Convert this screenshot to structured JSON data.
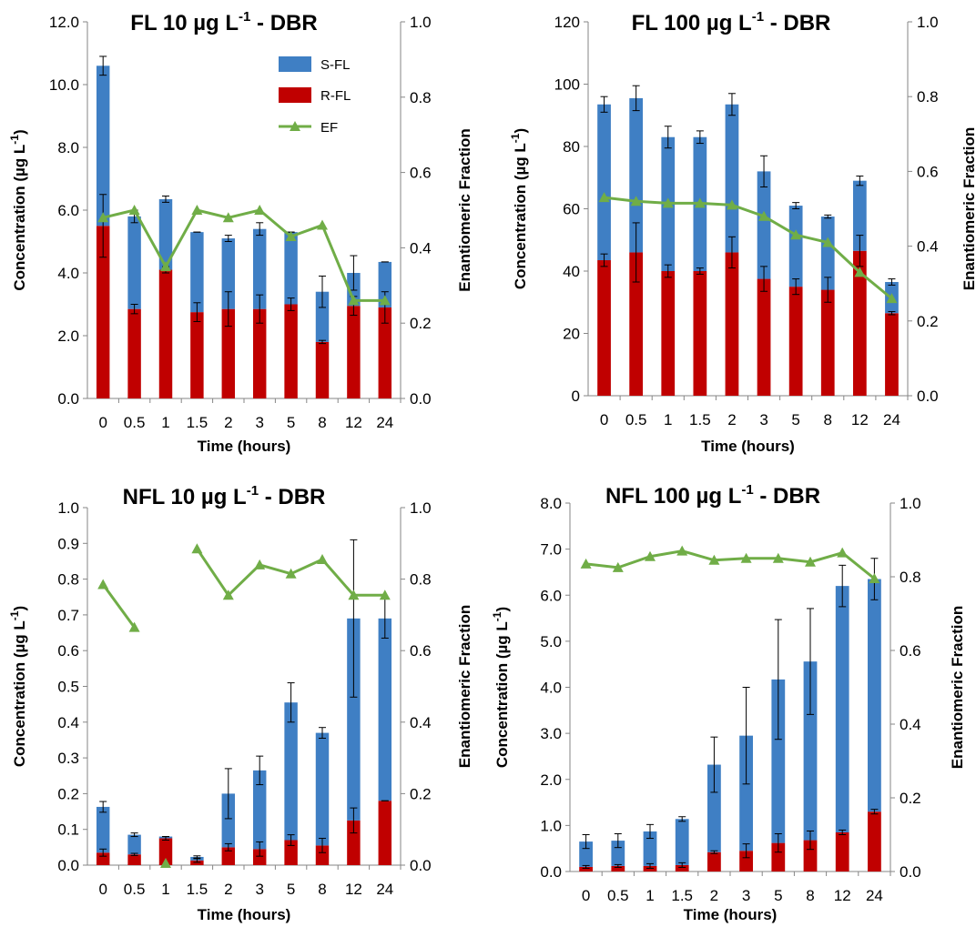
{
  "colors": {
    "s": "#3F7FC4",
    "r": "#C00000",
    "ef": "#70AD47",
    "axis": "#868686"
  },
  "legend": {
    "s_label": "S-FL",
    "r_label": "R-FL",
    "ef_label": "EF"
  },
  "chart_data": [
    {
      "type": "bar",
      "title": "FL 10 µg L",
      "title_superscript": "-1",
      "title_suffix": " - DBR",
      "xlabel": "Time (hours)",
      "ylabel": "Concentration (µg L",
      "ylabel_superscript": "-1",
      "ylabel_end": ")",
      "y2label": "Enantiomeric Fraction",
      "categories": [
        "0",
        "0.5",
        "1",
        "1.5",
        "2",
        "3",
        "5",
        "8",
        "12",
        "24"
      ],
      "ylim": [
        0,
        12
      ],
      "yticks": [
        "0.0",
        "2.0",
        "4.0",
        "6.0",
        "8.0",
        "10.0",
        "12.0"
      ],
      "y2lim": [
        0,
        1
      ],
      "y2ticks": [
        "0.0",
        "0.2",
        "0.4",
        "0.6",
        "0.8",
        "1.0"
      ],
      "series": [
        {
          "name": "R-FL",
          "values": [
            5.5,
            2.85,
            4.1,
            2.75,
            2.85,
            2.85,
            3.0,
            1.8,
            2.95,
            2.9
          ],
          "err": [
            1.0,
            0.15,
            0.1,
            0.3,
            0.55,
            0.45,
            0.2,
            0.05,
            0.3,
            0.5
          ]
        },
        {
          "name": "S-FL",
          "values": [
            5.1,
            2.95,
            2.25,
            2.55,
            2.25,
            2.55,
            2.3,
            1.6,
            1.05,
            1.45
          ],
          "err": [
            0.3,
            0.2,
            0.1,
            0.0,
            0.1,
            0.2,
            0.0,
            0.5,
            0.55,
            0.0
          ]
        },
        {
          "name": "EF",
          "values": [
            0.48,
            0.5,
            0.35,
            0.5,
            0.48,
            0.5,
            0.43,
            0.46,
            0.26,
            0.26
          ]
        }
      ],
      "show_legend": true
    },
    {
      "type": "bar",
      "title": "FL 100 µg L",
      "title_superscript": "-1",
      "title_suffix": " - DBR",
      "xlabel": "Time (hours)",
      "ylabel": "Concentration (µg L",
      "ylabel_superscript": "-1",
      "ylabel_end": ")",
      "y2label": "Enantiomeric Fraction",
      "categories": [
        "0",
        "0.5",
        "1",
        "1.5",
        "2",
        "3",
        "5",
        "8",
        "12",
        "24"
      ],
      "ylim": [
        0,
        120
      ],
      "yticks": [
        "0",
        "20",
        "40",
        "60",
        "80",
        "100",
        "120"
      ],
      "y2lim": [
        0,
        1
      ],
      "y2ticks": [
        "0.0",
        "0.2",
        "0.4",
        "0.6",
        "0.8",
        "1.0"
      ],
      "series": [
        {
          "name": "R-FL",
          "values": [
            43.5,
            46,
            40,
            40,
            46,
            37.5,
            35,
            34,
            46.5,
            26.5
          ],
          "err": [
            2,
            9.5,
            2,
            1,
            5,
            4,
            2.5,
            4,
            5,
            0.5
          ]
        },
        {
          "name": "S-FL",
          "values": [
            50,
            49.5,
            43,
            43,
            47.5,
            34.5,
            26,
            23.5,
            22.5,
            10
          ],
          "err": [
            2.5,
            4,
            3.5,
            2,
            3.5,
            5,
            1,
            0.5,
            1.5,
            1
          ]
        },
        {
          "name": "EF",
          "values": [
            0.53,
            0.52,
            0.515,
            0.515,
            0.51,
            0.48,
            0.43,
            0.41,
            0.33,
            0.26
          ]
        }
      ],
      "show_legend": false
    },
    {
      "type": "bar",
      "title": "NFL 10 µg L",
      "title_superscript": "-1",
      "title_suffix": " - DBR",
      "xlabel": "Time (hours)",
      "ylabel": "Concentration (µg L",
      "ylabel_superscript": "-1",
      "ylabel_end": ")",
      "y2label": "Enantiomeric Fraction",
      "categories": [
        "0",
        "0.5",
        "1",
        "1.5",
        "2",
        "3",
        "5",
        "8",
        "12",
        "24"
      ],
      "ylim": [
        0,
        1
      ],
      "yticks": [
        "0.0",
        "0.1",
        "0.2",
        "0.3",
        "0.4",
        "0.5",
        "0.6",
        "0.7",
        "0.8",
        "0.9",
        "1.0"
      ],
      "y2lim": [
        0,
        1
      ],
      "y2ticks": [
        "0.0",
        "0.2",
        "0.4",
        "0.6",
        "0.8",
        "1.0"
      ],
      "series": [
        {
          "name": "R-FL",
          "values": [
            0.035,
            0.03,
            0.075,
            0.013,
            0.05,
            0.045,
            0.07,
            0.055,
            0.125,
            0.18
          ],
          "err": [
            0.01,
            0.003,
            0.005,
            0.005,
            0.01,
            0.02,
            0.015,
            0.02,
            0.035,
            0.0
          ]
        },
        {
          "name": "S-FL",
          "values": [
            0.128,
            0.055,
            0.005,
            0.01,
            0.15,
            0.22,
            0.385,
            0.315,
            0.565,
            0.51
          ],
          "err": [
            0.015,
            0.005,
            0.0,
            0.003,
            0.07,
            0.04,
            0.055,
            0.015,
            0.22,
            0.055
          ]
        },
        {
          "name": "EF",
          "values": [
            0.785,
            0.665,
            0.005,
            0.885,
            0.755,
            0.84,
            0.815,
            0.855,
            0.755,
            0.755
          ]
        }
      ],
      "show_legend": false
    },
    {
      "type": "bar",
      "title": "NFL 100 µg L",
      "title_superscript": "-1",
      "title_suffix": " - DBR",
      "xlabel": "Time (hours)",
      "ylabel": "Concentration (µg L",
      "ylabel_superscript": "-1",
      "ylabel_end": ")",
      "y2label": "Enantiomeric Fraction",
      "categories": [
        "0",
        "0.5",
        "1",
        "1.5",
        "2",
        "3",
        "5",
        "8",
        "12",
        "24"
      ],
      "ylim": [
        0,
        8
      ],
      "yticks": [
        "0.0",
        "1.0",
        "2.0",
        "3.0",
        "4.0",
        "5.0",
        "6.0",
        "7.0",
        "8.0"
      ],
      "y2lim": [
        0,
        1
      ],
      "y2ticks": [
        "0.0",
        "0.2",
        "0.4",
        "0.6",
        "0.8",
        "1.0"
      ],
      "series": [
        {
          "name": "R-FL",
          "values": [
            0.1,
            0.12,
            0.12,
            0.14,
            0.42,
            0.45,
            0.62,
            0.68,
            0.85,
            1.3
          ],
          "err": [
            0.03,
            0.03,
            0.05,
            0.05,
            0.03,
            0.15,
            0.2,
            0.2,
            0.05,
            0.05
          ]
        },
        {
          "name": "S-FL",
          "values": [
            0.55,
            0.55,
            0.75,
            1.0,
            1.9,
            2.5,
            3.55,
            3.88,
            5.35,
            5.05
          ],
          "err": [
            0.15,
            0.15,
            0.15,
            0.05,
            0.6,
            1.05,
            1.3,
            1.15,
            0.45,
            0.45
          ]
        },
        {
          "name": "EF",
          "values": [
            0.835,
            0.825,
            0.855,
            0.87,
            0.845,
            0.85,
            0.85,
            0.84,
            0.865,
            0.795
          ]
        }
      ],
      "show_legend": false
    }
  ]
}
